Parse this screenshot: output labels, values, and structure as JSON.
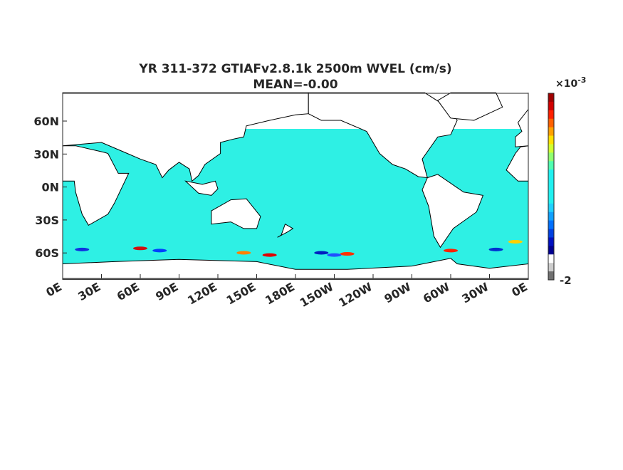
{
  "title": [
    "YR 311-372 GTIAFv2.8.1k 2500m WVEL (cm/s)",
    "MEAN=-0.00"
  ],
  "map": {
    "lat_labels": [
      "60N",
      "30N",
      "0N",
      "30S",
      "60S"
    ],
    "lon_labels": [
      "0E",
      "30E",
      "60E",
      "90E",
      "120E",
      "150E",
      "180E",
      "150W",
      "120W",
      "90W",
      "60W",
      "30W",
      "0E"
    ]
  },
  "colorbar": {
    "multiplier": "×10",
    "exponent": "-3",
    "tick_labels": [
      "-2"
    ],
    "colors": [
      "#a00000",
      "#d00000",
      "#ff2000",
      "#ff6000",
      "#ffa000",
      "#ffe000",
      "#d0ff30",
      "#90ff70",
      "#50ffb0",
      "#20f0f0",
      "#20f0f0",
      "#20f0f0",
      "#20f0f0",
      "#20d0ff",
      "#10a0ff",
      "#0070ff",
      "#0040e0",
      "#0010c0",
      "#000090",
      "#ffffff",
      "#cccccc",
      "#707070"
    ]
  }
}
